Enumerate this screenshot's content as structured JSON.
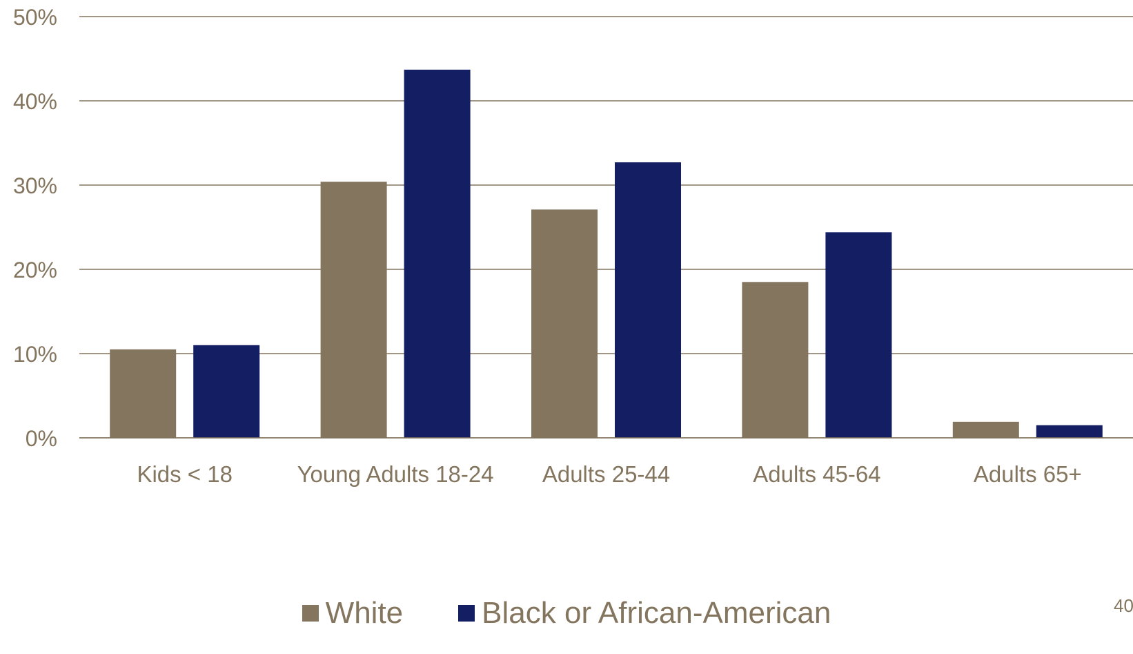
{
  "chart_data": {
    "type": "bar",
    "categories": [
      "Kids < 18",
      "Young Adults 18-24",
      "Adults 25-44",
      "Adults 45-64",
      "Adults 65+"
    ],
    "series": [
      {
        "name": "White",
        "values": [
          10.5,
          30.4,
          27.1,
          18.5,
          1.9
        ],
        "color": "#84755F"
      },
      {
        "name": "Black or African-American",
        "values": [
          11.0,
          43.7,
          32.7,
          24.4,
          1.5
        ],
        "color": "#141F63"
      }
    ],
    "yticks": [
      "0%",
      "10%",
      "20%",
      "30%",
      "40%",
      "50%"
    ],
    "ylim": [
      0,
      50
    ],
    "grid": true,
    "legend_position": "bottom-center",
    "text_color": "#84755F",
    "grid_color": "#84755F"
  },
  "page_number": "40"
}
